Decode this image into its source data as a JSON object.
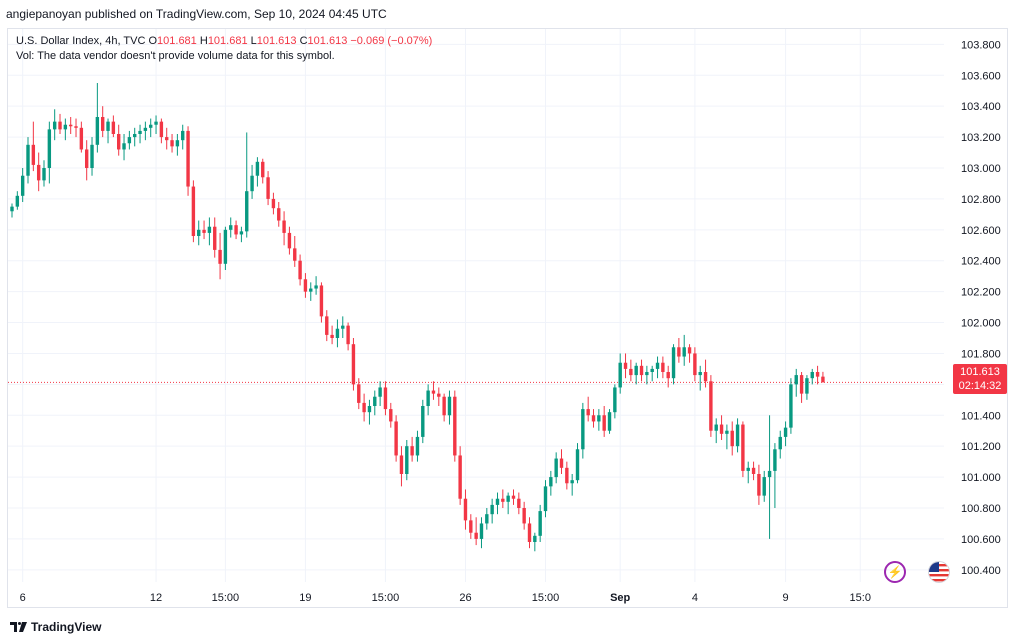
{
  "header": {
    "publisher": "angiepanoyan published on TradingView.com, Sep 10, 2024 04:45 UTC"
  },
  "legend": {
    "symbol": "U.S. Dollar Index, 4h, TVC",
    "o_label": "O",
    "o_value": "101.681",
    "h_label": "H",
    "h_value": "101.681",
    "l_label": "L",
    "l_value": "101.613",
    "c_label": "C",
    "c_value": "101.613",
    "change": "−0.069 (−0.07%)",
    "vol_note": "Vol: The data vendor doesn't provide volume data for this symbol."
  },
  "price_tag": {
    "price": "101.613",
    "countdown": "02:14:32"
  },
  "footer": {
    "brand": "TradingView"
  },
  "icons": {
    "bolt": "lightning-icon",
    "flag": "us-flag-icon",
    "logo": "tradingview-logo-icon"
  },
  "colors": {
    "up": "#089981",
    "down": "#f23645",
    "grid": "#f0f3fa",
    "accent": "#9c27b0"
  },
  "chart_data": {
    "type": "candlestick",
    "y_ticks": [
      "103.800",
      "103.600",
      "103.400",
      "103.200",
      "103.000",
      "102.800",
      "102.600",
      "102.400",
      "102.200",
      "102.000",
      "101.800",
      "101.600",
      "101.400",
      "101.200",
      "101.000",
      "100.800",
      "100.600",
      "100.400"
    ],
    "ylim": [
      100.25,
      103.88
    ],
    "x_ticks": [
      {
        "label": "6",
        "i": 2
      },
      {
        "label": "12",
        "i": 27
      },
      {
        "label": "15:00",
        "i": 40
      },
      {
        "label": "19",
        "i": 55
      },
      {
        "label": "15:00",
        "i": 70
      },
      {
        "label": "26",
        "i": 85
      },
      {
        "label": "15:00",
        "i": 100
      },
      {
        "label": "Sep",
        "i": 114
      },
      {
        "label": "4",
        "i": 128
      },
      {
        "label": "9",
        "i": 145
      },
      {
        "label": "15:0",
        "i": 159
      }
    ],
    "last_price": 101.613,
    "candles": [
      [
        102.72,
        102.77,
        102.68,
        102.75
      ],
      [
        102.75,
        102.85,
        102.73,
        102.82
      ],
      [
        102.82,
        103.0,
        102.78,
        102.95
      ],
      [
        102.95,
        103.2,
        102.9,
        103.15
      ],
      [
        103.15,
        103.3,
        102.98,
        103.02
      ],
      [
        103.02,
        103.1,
        102.85,
        102.92
      ],
      [
        102.92,
        103.05,
        102.88,
        103.0
      ],
      [
        103.0,
        103.3,
        102.9,
        103.25
      ],
      [
        103.25,
        103.38,
        103.18,
        103.3
      ],
      [
        103.3,
        103.35,
        103.22,
        103.25
      ],
      [
        103.25,
        103.32,
        103.18,
        103.28
      ],
      [
        103.28,
        103.33,
        103.22,
        103.27
      ],
      [
        103.27,
        103.32,
        103.2,
        103.26
      ],
      [
        103.26,
        103.3,
        103.1,
        103.12
      ],
      [
        103.12,
        103.18,
        102.92,
        103.0
      ],
      [
        103.0,
        103.2,
        102.95,
        103.15
      ],
      [
        103.15,
        103.55,
        103.1,
        103.33
      ],
      [
        103.33,
        103.4,
        103.2,
        103.24
      ],
      [
        103.24,
        103.32,
        103.16,
        103.3
      ],
      [
        103.3,
        103.34,
        103.2,
        103.22
      ],
      [
        103.22,
        103.28,
        103.08,
        103.12
      ],
      [
        103.12,
        103.22,
        103.05,
        103.16
      ],
      [
        103.16,
        103.24,
        103.12,
        103.2
      ],
      [
        103.2,
        103.26,
        103.14,
        103.22
      ],
      [
        103.22,
        103.28,
        103.16,
        103.24
      ],
      [
        103.24,
        103.3,
        103.18,
        103.26
      ],
      [
        103.26,
        103.32,
        103.2,
        103.28
      ],
      [
        103.28,
        103.34,
        103.22,
        103.3
      ],
      [
        103.3,
        103.32,
        103.16,
        103.2
      ],
      [
        103.2,
        103.26,
        103.12,
        103.18
      ],
      [
        103.18,
        103.22,
        103.1,
        103.14
      ],
      [
        103.14,
        103.22,
        103.08,
        103.18
      ],
      [
        103.18,
        103.28,
        103.12,
        103.24
      ],
      [
        103.24,
        103.27,
        102.82,
        102.88
      ],
      [
        102.88,
        102.92,
        102.52,
        102.56
      ],
      [
        102.56,
        102.66,
        102.5,
        102.6
      ],
      [
        102.6,
        102.66,
        102.54,
        102.58
      ],
      [
        102.58,
        102.68,
        102.5,
        102.62
      ],
      [
        102.62,
        102.68,
        102.42,
        102.47
      ],
      [
        102.47,
        102.58,
        102.28,
        102.38
      ],
      [
        102.38,
        102.62,
        102.34,
        102.6
      ],
      [
        102.6,
        102.68,
        102.55,
        102.63
      ],
      [
        102.63,
        102.66,
        102.54,
        102.57
      ],
      [
        102.57,
        102.62,
        102.52,
        102.59
      ],
      [
        102.59,
        103.23,
        102.55,
        102.85
      ],
      [
        102.85,
        103.02,
        102.8,
        102.95
      ],
      [
        102.95,
        103.07,
        102.88,
        103.04
      ],
      [
        103.04,
        103.06,
        102.9,
        102.94
      ],
      [
        102.94,
        102.98,
        102.76,
        102.8
      ],
      [
        102.8,
        102.84,
        102.7,
        102.74
      ],
      [
        102.74,
        102.78,
        102.62,
        102.66
      ],
      [
        102.66,
        102.72,
        102.5,
        102.58
      ],
      [
        102.58,
        102.62,
        102.44,
        102.48
      ],
      [
        102.48,
        102.56,
        102.36,
        102.4
      ],
      [
        102.4,
        102.44,
        102.24,
        102.28
      ],
      [
        102.28,
        102.32,
        102.16,
        102.2
      ],
      [
        102.2,
        102.26,
        102.14,
        102.22
      ],
      [
        102.22,
        102.3,
        102.18,
        102.24
      ],
      [
        102.24,
        102.26,
        102.0,
        102.04
      ],
      [
        102.04,
        102.08,
        101.88,
        101.92
      ],
      [
        101.92,
        101.98,
        101.86,
        101.9
      ],
      [
        101.9,
        102.02,
        101.84,
        101.96
      ],
      [
        101.96,
        102.04,
        101.9,
        101.98
      ],
      [
        101.98,
        102.0,
        101.82,
        101.86
      ],
      [
        101.86,
        101.9,
        101.56,
        101.6
      ],
      [
        101.6,
        101.64,
        101.44,
        101.48
      ],
      [
        101.48,
        101.54,
        101.36,
        101.42
      ],
      [
        101.42,
        101.5,
        101.34,
        101.46
      ],
      [
        101.46,
        101.56,
        101.4,
        101.52
      ],
      [
        101.52,
        101.62,
        101.46,
        101.58
      ],
      [
        101.58,
        101.62,
        101.4,
        101.44
      ],
      [
        101.44,
        101.48,
        101.32,
        101.36
      ],
      [
        101.36,
        101.4,
        101.1,
        101.14
      ],
      [
        101.14,
        101.2,
        100.94,
        101.02
      ],
      [
        101.02,
        101.24,
        100.98,
        101.2
      ],
      [
        101.2,
        101.26,
        101.1,
        101.14
      ],
      [
        101.14,
        101.3,
        101.1,
        101.26
      ],
      [
        101.26,
        101.5,
        101.22,
        101.46
      ],
      [
        101.46,
        101.6,
        101.4,
        101.56
      ],
      [
        101.56,
        101.62,
        101.5,
        101.54
      ],
      [
        101.54,
        101.58,
        101.46,
        101.52
      ],
      [
        101.52,
        101.54,
        101.36,
        101.4
      ],
      [
        101.4,
        101.56,
        101.34,
        101.52
      ],
      [
        101.52,
        101.56,
        101.1,
        101.14
      ],
      [
        101.14,
        101.2,
        100.82,
        100.86
      ],
      [
        100.86,
        100.92,
        100.66,
        100.72
      ],
      [
        100.72,
        100.76,
        100.6,
        100.64
      ],
      [
        100.64,
        100.74,
        100.56,
        100.6
      ],
      [
        100.6,
        100.74,
        100.54,
        100.7
      ],
      [
        100.7,
        100.8,
        100.66,
        100.76
      ],
      [
        100.76,
        100.86,
        100.7,
        100.82
      ],
      [
        100.82,
        100.9,
        100.76,
        100.86
      ],
      [
        100.86,
        100.92,
        100.8,
        100.84
      ],
      [
        100.84,
        100.9,
        100.76,
        100.88
      ],
      [
        100.88,
        100.92,
        100.82,
        100.86
      ],
      [
        100.86,
        100.9,
        100.76,
        100.8
      ],
      [
        100.8,
        100.84,
        100.66,
        100.7
      ],
      [
        100.7,
        100.74,
        100.54,
        100.58
      ],
      [
        100.58,
        100.64,
        100.52,
        100.62
      ],
      [
        100.62,
        100.82,
        100.58,
        100.78
      ],
      [
        100.78,
        100.98,
        100.74,
        100.94
      ],
      [
        100.94,
        101.04,
        100.88,
        101.0
      ],
      [
        101.0,
        101.16,
        100.96,
        101.12
      ],
      [
        101.12,
        101.18,
        101.02,
        101.06
      ],
      [
        101.06,
        101.1,
        100.92,
        100.96
      ],
      [
        100.96,
        101.02,
        100.88,
        100.98
      ],
      [
        100.98,
        101.22,
        100.96,
        101.18
      ],
      [
        101.18,
        101.48,
        101.12,
        101.44
      ],
      [
        101.44,
        101.52,
        101.36,
        101.4
      ],
      [
        101.4,
        101.44,
        101.32,
        101.36
      ],
      [
        101.36,
        101.44,
        101.3,
        101.4
      ],
      [
        101.4,
        101.46,
        101.26,
        101.3
      ],
      [
        101.3,
        101.44,
        101.28,
        101.42
      ],
      [
        101.42,
        101.6,
        101.38,
        101.58
      ],
      [
        101.58,
        101.8,
        101.54,
        101.74
      ],
      [
        101.74,
        101.8,
        101.64,
        101.7
      ],
      [
        101.7,
        101.76,
        101.62,
        101.66
      ],
      [
        101.66,
        101.74,
        101.6,
        101.72
      ],
      [
        101.72,
        101.76,
        101.62,
        101.66
      ],
      [
        101.66,
        101.72,
        101.6,
        101.68
      ],
      [
        101.68,
        101.72,
        101.62,
        101.7
      ],
      [
        101.7,
        101.78,
        101.64,
        101.74
      ],
      [
        101.74,
        101.78,
        101.64,
        101.68
      ],
      [
        101.68,
        101.72,
        101.58,
        101.64
      ],
      [
        101.64,
        101.86,
        101.6,
        101.84
      ],
      [
        101.84,
        101.9,
        101.74,
        101.78
      ],
      [
        101.78,
        101.92,
        101.72,
        101.84
      ],
      [
        101.84,
        101.86,
        101.74,
        101.8
      ],
      [
        101.8,
        101.84,
        101.62,
        101.66
      ],
      [
        101.66,
        101.72,
        101.56,
        101.68
      ],
      [
        101.68,
        101.76,
        101.58,
        101.62
      ],
      [
        101.62,
        101.66,
        101.26,
        101.3
      ],
      [
        101.3,
        101.38,
        101.22,
        101.34
      ],
      [
        101.34,
        101.4,
        101.24,
        101.28
      ],
      [
        101.28,
        101.34,
        101.18,
        101.3
      ],
      [
        101.3,
        101.36,
        101.14,
        101.2
      ],
      [
        101.2,
        101.38,
        101.16,
        101.34
      ],
      [
        101.34,
        101.36,
        101.0,
        101.04
      ],
      [
        101.04,
        101.1,
        100.96,
        101.06
      ],
      [
        101.06,
        101.1,
        100.98,
        101.02
      ],
      [
        101.02,
        101.08,
        100.82,
        100.88
      ],
      [
        100.88,
        101.04,
        100.84,
        101.0
      ],
      [
        101.0,
        101.4,
        100.6,
        101.04
      ],
      [
        101.04,
        101.22,
        100.8,
        101.18
      ],
      [
        101.18,
        101.3,
        101.12,
        101.26
      ],
      [
        101.26,
        101.36,
        101.2,
        101.32
      ],
      [
        101.32,
        101.64,
        101.28,
        101.6
      ],
      [
        101.6,
        101.7,
        101.52,
        101.66
      ],
      [
        101.66,
        101.68,
        101.48,
        101.54
      ],
      [
        101.54,
        101.66,
        101.5,
        101.64
      ],
      [
        101.64,
        101.7,
        101.6,
        101.68
      ],
      [
        101.68,
        101.72,
        101.6,
        101.65
      ],
      [
        101.65,
        101.681,
        101.613,
        101.613
      ]
    ]
  }
}
